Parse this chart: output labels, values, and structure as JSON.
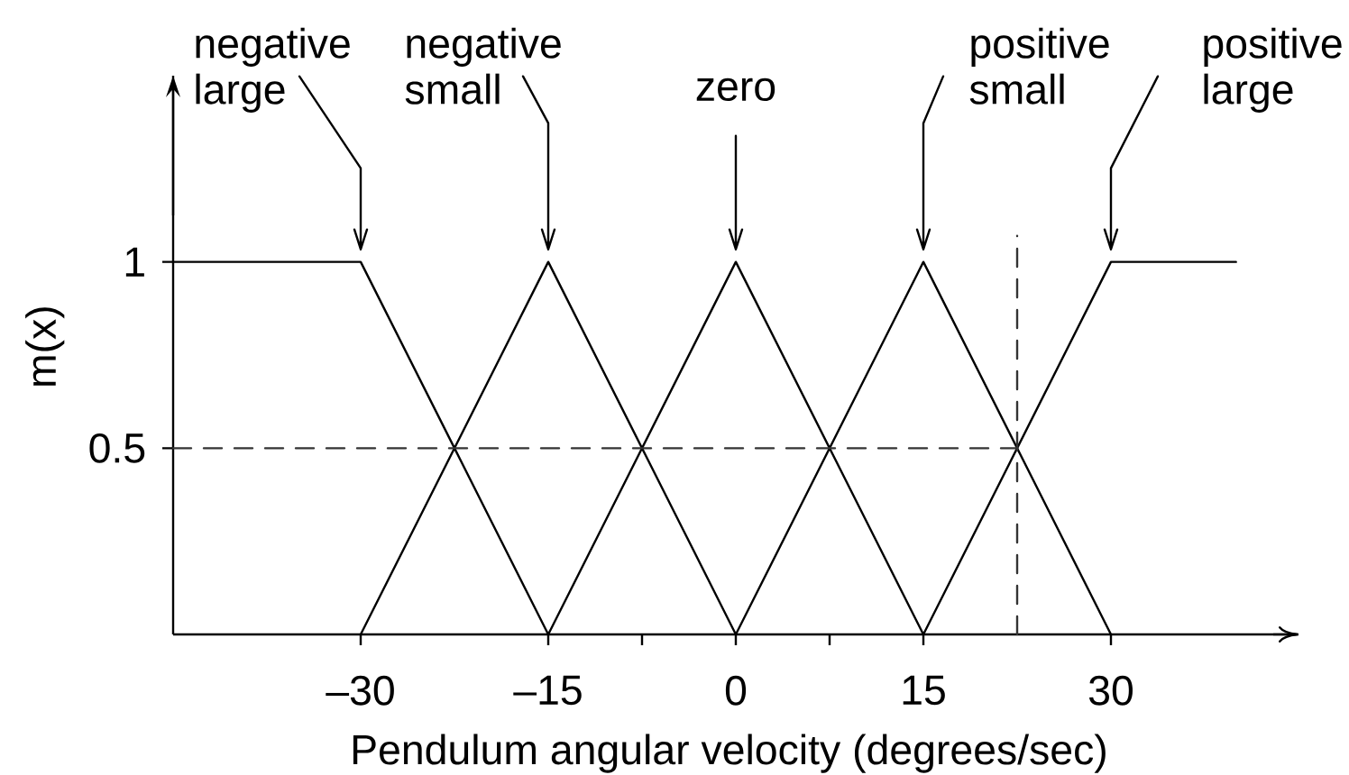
{
  "chart_data": {
    "type": "line",
    "xlabel": "Pendulum angular velocity (degrees/sec)",
    "ylabel": "m(x)",
    "xlim": [
      -45,
      45
    ],
    "ylim": [
      0,
      1.5
    ],
    "xticks": [
      {
        "value": -30,
        "label": "–30"
      },
      {
        "value": -15,
        "label": "–15"
      },
      {
        "value": -7.5,
        "label": null
      },
      0,
      {
        "value": 7.5,
        "label": null
      },
      15,
      30
    ],
    "yticks": [
      0.5,
      1
    ],
    "series": [
      {
        "name": "negative large",
        "color": "#000000",
        "x": [
          -45,
          -30,
          -15
        ],
        "values": [
          1,
          1,
          0
        ]
      },
      {
        "name": "negative small",
        "color": "#000000",
        "x": [
          -30,
          -15,
          0
        ],
        "values": [
          0,
          1,
          0
        ]
      },
      {
        "name": "zero",
        "color": "#000000",
        "x": [
          -15,
          0,
          15
        ],
        "values": [
          0,
          1,
          0
        ]
      },
      {
        "name": "positive small",
        "color": "#000000",
        "x": [
          0,
          15,
          30
        ],
        "values": [
          0,
          1,
          0
        ]
      },
      {
        "name": "positive large",
        "color": "#000000",
        "x": [
          15,
          30,
          40
        ],
        "values": [
          0,
          1,
          1
        ]
      },
      {
        "color": "#333333",
        "line_style": "dashed",
        "x": [
          -45,
          22.5
        ],
        "values": [
          0.5,
          0.5
        ]
      },
      {
        "color": "#333333",
        "line_style": "dashed",
        "x": [
          22.5,
          22.5
        ],
        "values": [
          0,
          1.07
        ]
      }
    ]
  }
}
